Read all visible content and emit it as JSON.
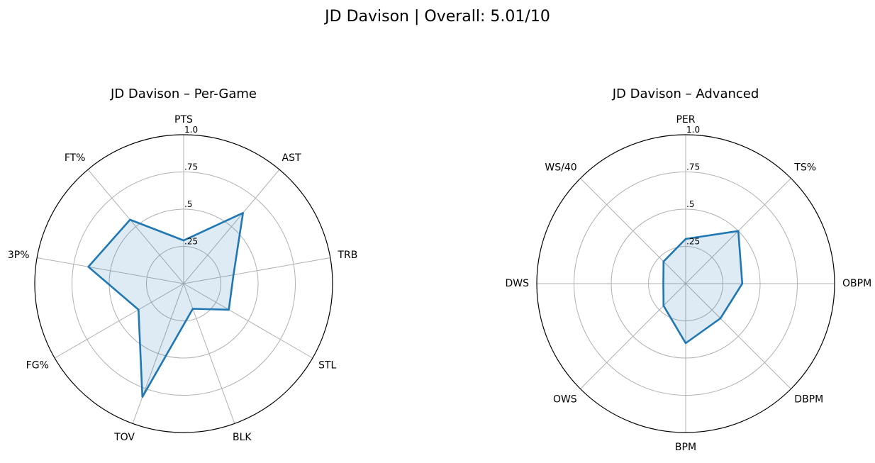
{
  "figure": {
    "title": "JD Davison | Overall: 5.01/10"
  },
  "chart_data": [
    {
      "type": "radar",
      "title": "JD Davison – Per-Game",
      "categories": [
        "PTS",
        "AST",
        "TRB",
        "STL",
        "BLK",
        "TOV",
        "FG%",
        "3P%",
        "FT%"
      ],
      "values": [
        0.29,
        0.62,
        0.34,
        0.35,
        0.18,
        0.81,
        0.35,
        0.65,
        0.56
      ],
      "rlim": [
        0,
        1.0
      ],
      "rticks": [
        ".25",
        ".5",
        ".75",
        "1.0"
      ],
      "grid": true,
      "line_color": "#1f77b4",
      "fill_color": "#1f77b4"
    },
    {
      "type": "radar",
      "title": "JD Davison – Advanced",
      "categories": [
        "PER",
        "TS%",
        "OBPM",
        "DBPM",
        "BPM",
        "OWS",
        "DWS",
        "WS/40"
      ],
      "values": [
        0.3,
        0.5,
        0.38,
        0.33,
        0.4,
        0.21,
        0.15,
        0.21
      ],
      "rlim": [
        0,
        1.0
      ],
      "rticks": [
        ".25",
        ".5",
        ".75",
        "1.0"
      ],
      "grid": true,
      "line_color": "#1f77b4",
      "fill_color": "#1f77b4"
    }
  ]
}
